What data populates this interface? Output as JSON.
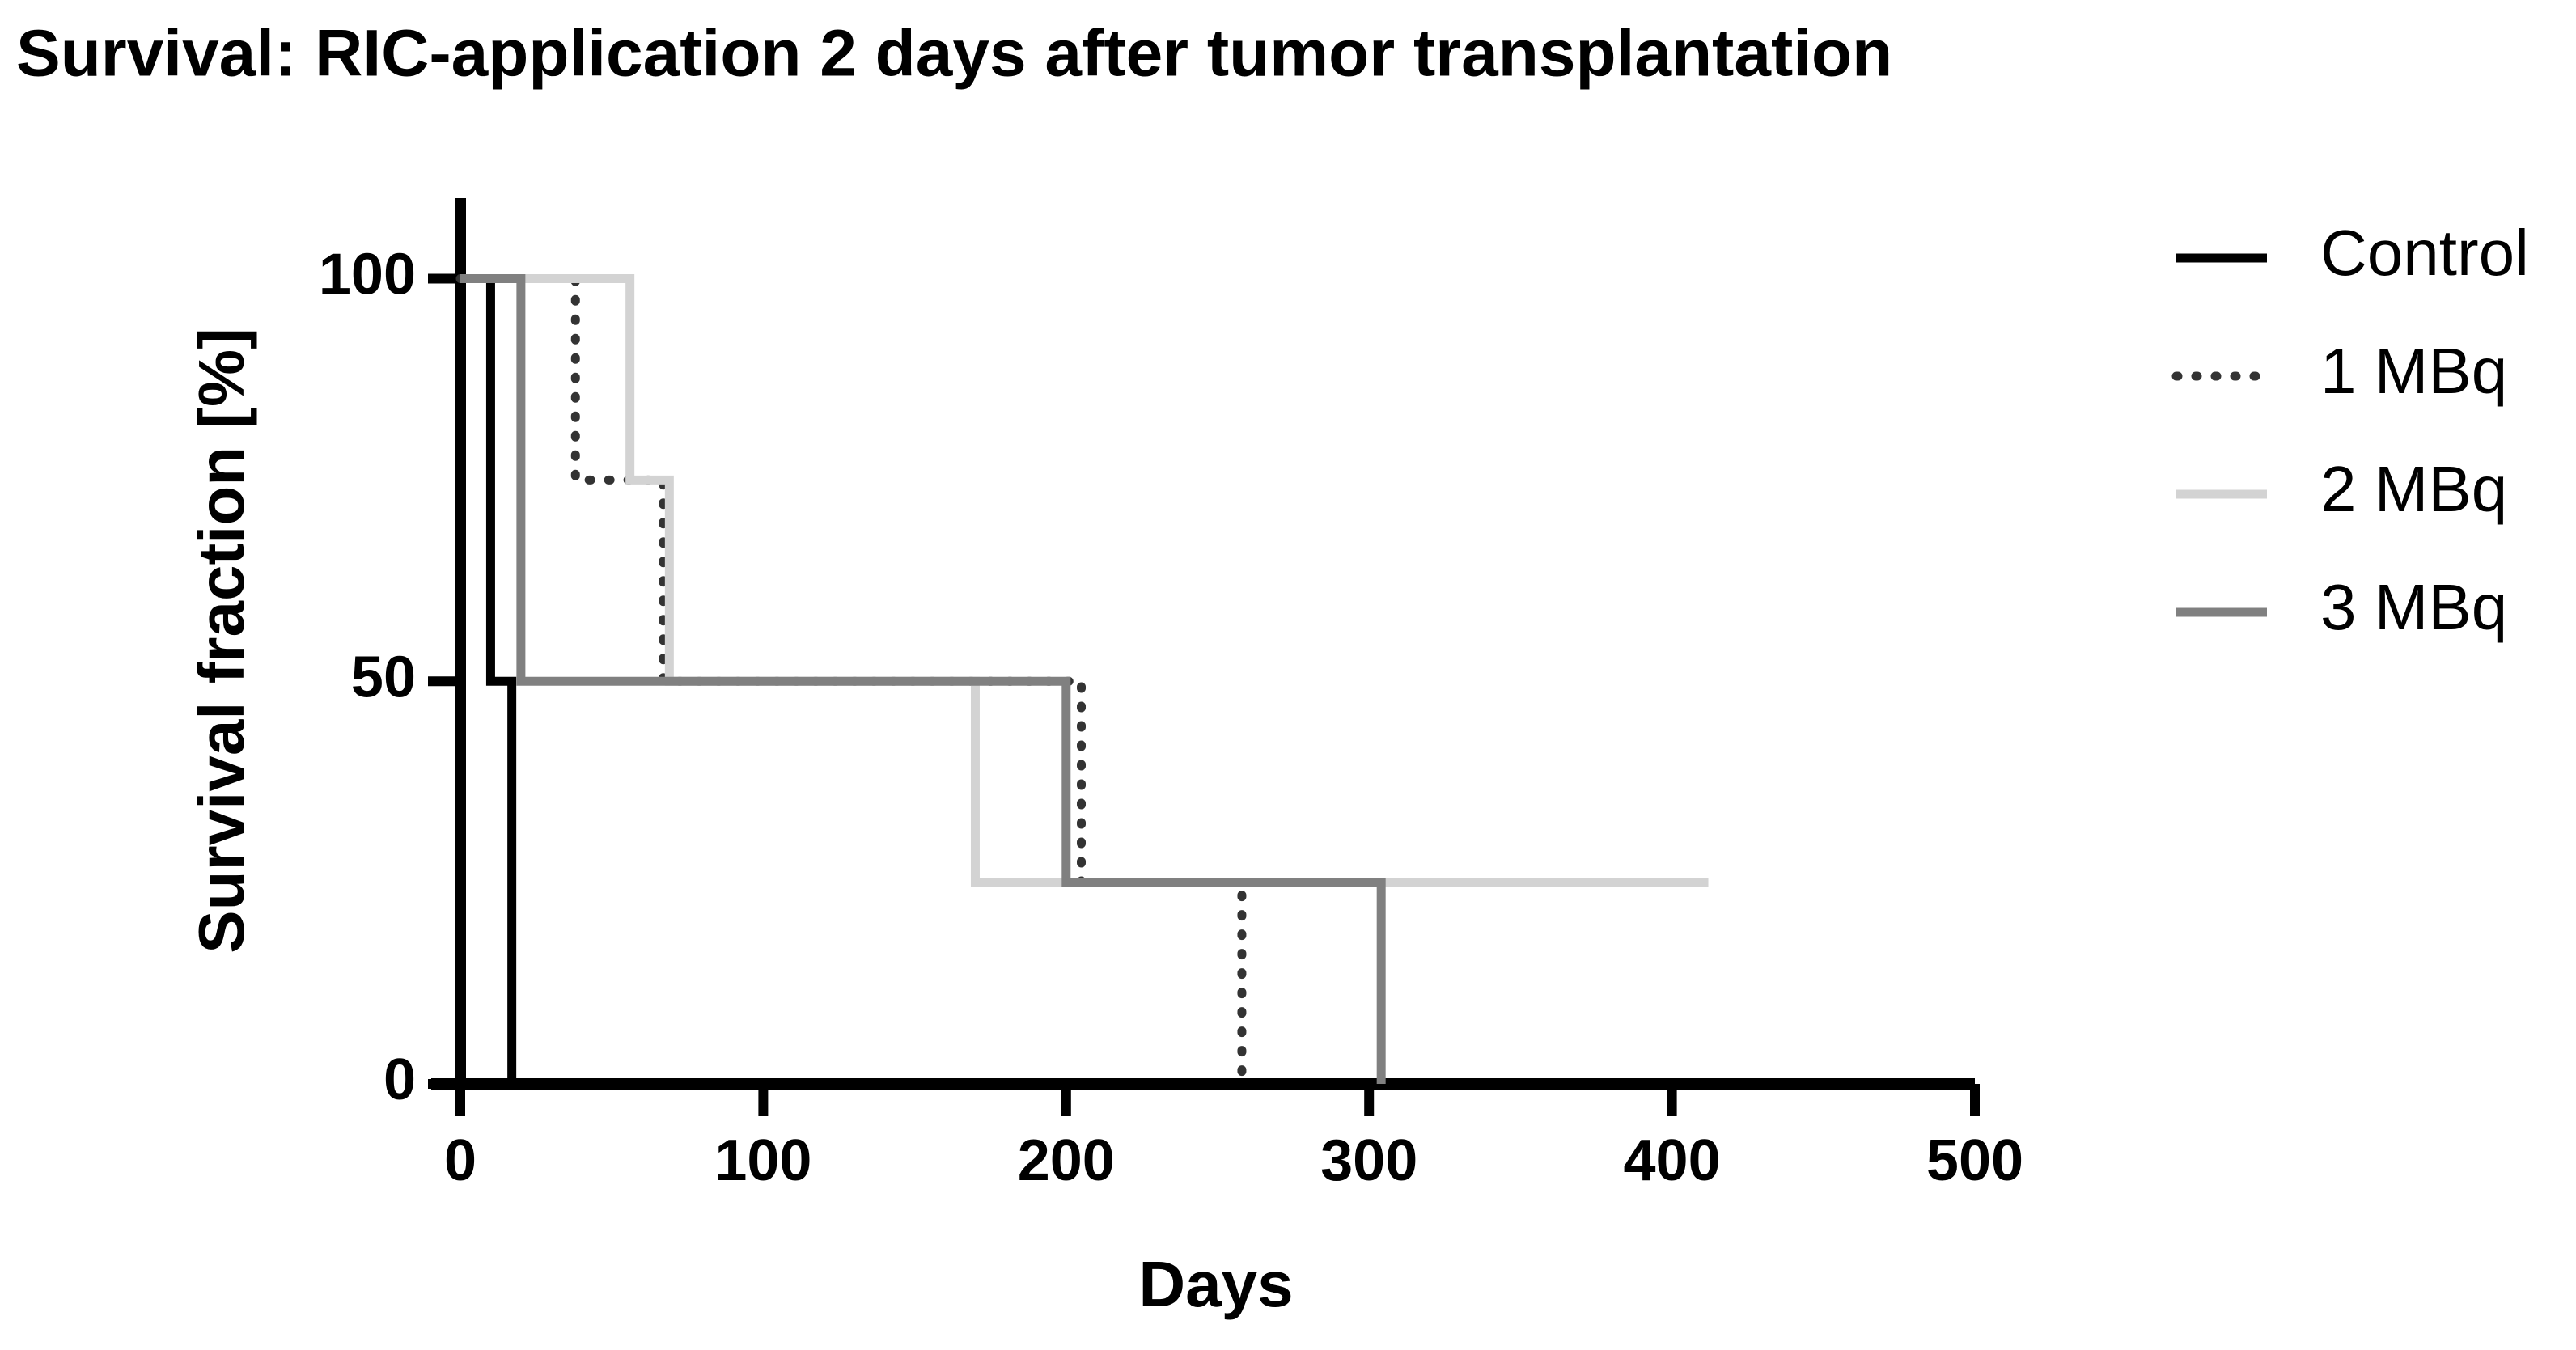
{
  "chart_data": {
    "type": "survival",
    "title": "Survival: RIC-application 2 days after tumor transplantation",
    "xlabel": "Days",
    "ylabel": "Survival fraction [%]",
    "xlim": [
      0,
      500
    ],
    "xticks": [
      0,
      100,
      200,
      300,
      400,
      500
    ],
    "ylim": [
      0,
      110
    ],
    "yticks": [
      0,
      50,
      100
    ],
    "legend": "right",
    "series": [
      {
        "name": "Control",
        "color": "#000000",
        "dash": "solid",
        "x": [
          0,
          10,
          17
        ],
        "values": [
          100,
          50,
          0
        ]
      },
      {
        "name": "1 MBq",
        "color": "#333333",
        "dash": "dotted",
        "x": [
          0,
          38,
          67,
          205,
          258
        ],
        "values": [
          100,
          75,
          50,
          25,
          0
        ]
      },
      {
        "name": "2 MBq",
        "color": "#d3d3d3",
        "dash": "solid",
        "x": [
          0,
          56,
          69,
          170,
          412
        ],
        "values": [
          100,
          75,
          50,
          25,
          25
        ]
      },
      {
        "name": "3 MBq",
        "color": "#808080",
        "dash": "solid",
        "x": [
          0,
          20,
          200,
          304
        ],
        "values": [
          100,
          50,
          25,
          0
        ]
      }
    ]
  }
}
